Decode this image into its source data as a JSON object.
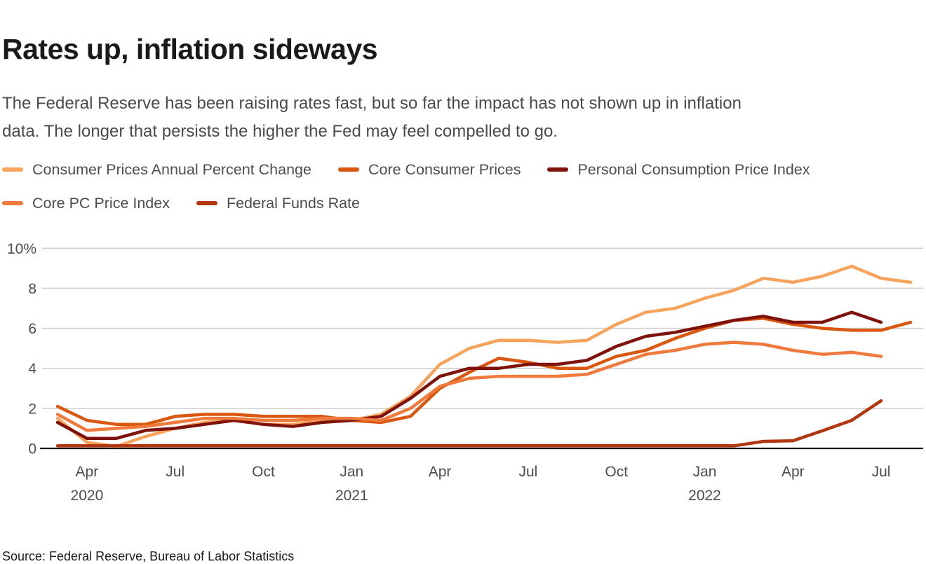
{
  "page": {
    "title": "Rates up, inflation sideways",
    "subtitle": "The Federal Reserve has been raising rates fast, but so far the impact has not shown up in inflation\ndata. The longer that persists the higher the Fed may feel compelled to go.",
    "source": "Source: Federal Reserve, Bureau of Labor Statistics"
  },
  "chart_data": {
    "type": "line",
    "title": "Rates up, inflation sideways",
    "x_unit": "month",
    "grid": true,
    "legend_position": "top",
    "ylim": [
      0,
      10
    ],
    "y_ticks": [
      {
        "value": 0,
        "label": "0"
      },
      {
        "value": 2,
        "label": "2"
      },
      {
        "value": 4,
        "label": "4"
      },
      {
        "value": 6,
        "label": "6"
      },
      {
        "value": 8,
        "label": "8"
      },
      {
        "value": 10,
        "label": "10%"
      }
    ],
    "x_ticks": [
      {
        "index": 1,
        "label": "Apr",
        "year": "2020"
      },
      {
        "index": 4,
        "label": "Jul"
      },
      {
        "index": 7,
        "label": "Oct"
      },
      {
        "index": 10,
        "label": "Jan",
        "year": "2021"
      },
      {
        "index": 13,
        "label": "Apr"
      },
      {
        "index": 16,
        "label": "Jul"
      },
      {
        "index": 19,
        "label": "Oct"
      },
      {
        "index": 22,
        "label": "Jan",
        "year": "2022"
      },
      {
        "index": 25,
        "label": "Apr"
      },
      {
        "index": 28,
        "label": "Jul"
      }
    ],
    "months": [
      "Mar 2020",
      "Apr 2020",
      "May 2020",
      "Jun 2020",
      "Jul 2020",
      "Aug 2020",
      "Sep 2020",
      "Oct 2020",
      "Nov 2020",
      "Dec 2020",
      "Jan 2021",
      "Feb 2021",
      "Mar 2021",
      "Apr 2021",
      "May 2021",
      "Jun 2021",
      "Jul 2021",
      "Aug 2021",
      "Sep 2021",
      "Oct 2021",
      "Nov 2021",
      "Dec 2021",
      "Jan 2022",
      "Feb 2022",
      "Mar 2022",
      "Apr 2022",
      "May 2022",
      "Jun 2022",
      "Jul 2022",
      "Aug 2022"
    ],
    "series": [
      {
        "name": "Consumer Prices Annual Percent Change",
        "color": "#F7A35C",
        "values": [
          1.5,
          0.3,
          0.1,
          0.6,
          1.0,
          1.3,
          1.4,
          1.2,
          1.2,
          1.4,
          1.4,
          1.7,
          2.6,
          4.2,
          5.0,
          5.4,
          5.4,
          5.3,
          5.4,
          6.2,
          6.8,
          7.0,
          7.5,
          7.9,
          8.5,
          8.3,
          8.6,
          9.1,
          8.5,
          8.3
        ]
      },
      {
        "name": "Core Consumer Prices",
        "color": "#D9570F",
        "values": [
          2.1,
          1.4,
          1.2,
          1.2,
          1.6,
          1.7,
          1.7,
          1.6,
          1.6,
          1.6,
          1.4,
          1.3,
          1.6,
          3.0,
          3.8,
          4.5,
          4.3,
          4.0,
          4.0,
          4.6,
          4.9,
          5.5,
          6.0,
          6.4,
          6.5,
          6.2,
          6.0,
          5.9,
          5.9,
          6.3
        ]
      },
      {
        "name": "Personal Consumption Price Index",
        "color": "#7F120B",
        "values": [
          1.3,
          0.5,
          0.5,
          0.9,
          1.0,
          1.2,
          1.4,
          1.2,
          1.1,
          1.3,
          1.4,
          1.6,
          2.5,
          3.6,
          4.0,
          4.0,
          4.2,
          4.2,
          4.4,
          5.1,
          5.6,
          5.8,
          6.1,
          6.4,
          6.6,
          6.3,
          6.3,
          6.8,
          6.3
        ]
      },
      {
        "name": "Core PC Price Index",
        "color": "#F0793C",
        "values": [
          1.7,
          0.9,
          1.0,
          1.1,
          1.3,
          1.5,
          1.5,
          1.4,
          1.4,
          1.5,
          1.5,
          1.4,
          2.0,
          3.1,
          3.5,
          3.6,
          3.6,
          3.6,
          3.7,
          4.2,
          4.7,
          4.9,
          5.2,
          5.3,
          5.2,
          4.9,
          4.7,
          4.8,
          4.6
        ]
      },
      {
        "name": "Federal Funds Rate",
        "color": "#B23610",
        "values": [
          0.13,
          0.13,
          0.13,
          0.13,
          0.13,
          0.13,
          0.13,
          0.13,
          0.13,
          0.13,
          0.13,
          0.13,
          0.13,
          0.13,
          0.13,
          0.13,
          0.13,
          0.13,
          0.13,
          0.13,
          0.13,
          0.13,
          0.13,
          0.13,
          0.35,
          0.38,
          0.88,
          1.4,
          2.38
        ]
      }
    ]
  }
}
